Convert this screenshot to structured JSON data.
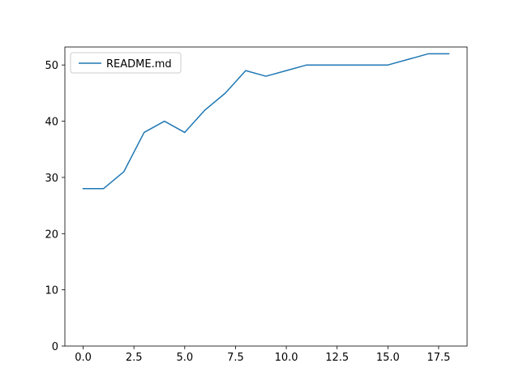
{
  "chart_data": {
    "type": "line",
    "title": "",
    "xlabel": "",
    "ylabel": "",
    "xlim": [
      -0.9,
      18.9
    ],
    "ylim": [
      0,
      53.2
    ],
    "xticks": [
      0.0,
      2.5,
      5.0,
      7.5,
      10.0,
      12.5,
      15.0,
      17.5
    ],
    "xtick_labels": [
      "0.0",
      "2.5",
      "5.0",
      "7.5",
      "10.0",
      "12.5",
      "15.0",
      "17.5"
    ],
    "yticks": [
      0,
      10,
      20,
      30,
      40,
      50
    ],
    "ytick_labels": [
      "0",
      "10",
      "20",
      "30",
      "40",
      "50"
    ],
    "grid": false,
    "legend_position": "top-left",
    "series": [
      {
        "name": "README.md",
        "color": "#1f77b4",
        "x": [
          0,
          1,
          2,
          3,
          4,
          5,
          6,
          7,
          8,
          9,
          10,
          11,
          12,
          13,
          14,
          15,
          16,
          17,
          18
        ],
        "y": [
          28,
          28,
          31,
          38,
          40,
          38,
          42,
          45,
          49,
          48,
          49,
          50,
          50,
          50,
          50,
          50,
          51,
          52,
          52
        ]
      }
    ]
  }
}
